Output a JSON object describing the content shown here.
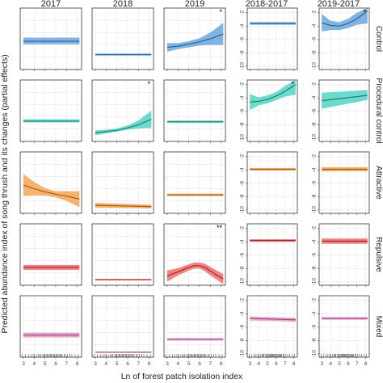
{
  "chart_data": {
    "type": "line",
    "xlabel": "Ln of forest patch isolation index",
    "ylabel": "Predicted abundance index of song thrush and its changes (partial effects)",
    "columns": [
      "2017",
      "2018",
      "2019",
      "2018-2017",
      "2019-2017"
    ],
    "rows": [
      "Control",
      "Procedural control",
      "Attractive",
      "Repulsive",
      "Mixed"
    ],
    "row_colors": [
      "#6aa7dd",
      "#52d5c4",
      "#f3a653",
      "#f06e6e",
      "#e59ac6"
    ],
    "line_colors": [
      "#2f5f8f",
      "#267c70",
      "#a25b13",
      "#a32424",
      "#9d4d7e"
    ],
    "xlim": [
      2.7,
      8.4
    ],
    "x_ticks": [
      3,
      4,
      5,
      6,
      7,
      8
    ],
    "x_ticks_bottom_labeled": true,
    "y_ticks_diff_columns": [
      -2,
      -4,
      -6,
      -8,
      -10
    ],
    "ylim_diff": [
      -10.5,
      -1.3
    ],
    "ylim_abs": [
      0,
      10
    ],
    "rug_x": [
      2.9,
      3.2,
      3.5,
      3.7,
      3.9,
      4.0,
      4.2,
      4.4,
      4.5,
      4.6,
      4.8,
      4.9,
      5.0,
      5.1,
      5.2,
      5.3,
      5.4,
      5.5,
      5.6,
      5.7,
      5.8,
      5.9,
      6.0,
      6.1,
      6.2,
      6.3,
      6.4,
      6.5,
      6.6,
      6.8,
      6.9,
      7.1,
      7.3,
      7.5,
      7.8,
      8.1
    ],
    "panels": [
      {
        "row": 0,
        "col": 0,
        "x": [
          3,
          8.2
        ],
        "y": [
          4.6,
          4.6
        ],
        "lower": [
          4.1,
          4.1
        ],
        "upper": [
          5.2,
          5.2
        ],
        "sig": ""
      },
      {
        "row": 0,
        "col": 1,
        "x": [
          3,
          8.2
        ],
        "y": [
          2.4,
          2.4
        ],
        "lower": [
          2.3,
          2.3
        ],
        "upper": [
          2.6,
          2.6
        ],
        "sig": ""
      },
      {
        "row": 0,
        "col": 2,
        "x": [
          3,
          4,
          5,
          6,
          7,
          8.2
        ],
        "y": [
          3.6,
          3.8,
          4.1,
          4.5,
          5.0,
          5.8
        ],
        "lower": [
          2.9,
          3.3,
          3.6,
          3.9,
          4.0,
          4.0
        ],
        "upper": [
          4.3,
          4.3,
          4.6,
          5.1,
          6.0,
          7.6
        ],
        "sig": "*"
      },
      {
        "row": 0,
        "col": 3,
        "x": [
          3,
          8.2
        ],
        "y": [
          -3.6,
          -3.6
        ],
        "lower": [
          -3.8,
          -3.8
        ],
        "upper": [
          -3.4,
          -3.4
        ],
        "sig": ""
      },
      {
        "row": 0,
        "col": 4,
        "x": [
          3,
          4,
          5,
          6,
          7,
          8.2
        ],
        "y": [
          -3.5,
          -3.9,
          -4.0,
          -3.6,
          -2.9,
          -1.7
        ],
        "lower": [
          -4.8,
          -4.6,
          -4.6,
          -4.3,
          -3.8,
          -3.6
        ],
        "upper": [
          -2.2,
          -3.2,
          -3.4,
          -2.9,
          -2.0,
          0.2
        ],
        "sig": "*"
      },
      {
        "row": 1,
        "col": 0,
        "x": [
          3,
          8.2
        ],
        "y": [
          3.3,
          3.3
        ],
        "lower": [
          3.1,
          3.1
        ],
        "upper": [
          3.6,
          3.6
        ],
        "sig": ""
      },
      {
        "row": 1,
        "col": 1,
        "x": [
          3,
          4,
          5,
          6,
          7,
          8.2
        ],
        "y": [
          1.4,
          1.6,
          1.8,
          2.2,
          2.7,
          3.6
        ],
        "lower": [
          1.0,
          1.3,
          1.6,
          1.9,
          2.1,
          2.2
        ],
        "upper": [
          1.8,
          1.9,
          2.1,
          2.6,
          3.4,
          5.0
        ],
        "sig": "*"
      },
      {
        "row": 1,
        "col": 2,
        "x": [
          3,
          8.2
        ],
        "y": [
          3.2,
          3.2
        ],
        "lower": [
          3.0,
          3.0
        ],
        "upper": [
          3.4,
          3.4
        ],
        "sig": ""
      },
      {
        "row": 1,
        "col": 3,
        "x": [
          3,
          4,
          5,
          6,
          7,
          8.2
        ],
        "y": [
          -4.6,
          -4.5,
          -4.2,
          -3.7,
          -3.0,
          -2.0
        ],
        "lower": [
          -5.8,
          -5.1,
          -4.8,
          -4.3,
          -3.8,
          -3.5
        ],
        "upper": [
          -3.4,
          -3.9,
          -3.6,
          -3.1,
          -2.2,
          -0.5
        ],
        "sig": "*"
      },
      {
        "row": 1,
        "col": 4,
        "x": [
          3,
          8.2
        ],
        "y": [
          -4.4,
          -3.6
        ],
        "lower": [
          -5.6,
          -4.3
        ],
        "upper": [
          -3.2,
          -2.8
        ],
        "sig": ""
      },
      {
        "row": 2,
        "col": 0,
        "x": [
          3,
          4,
          5,
          6,
          7,
          8.2
        ],
        "y": [
          4.6,
          4.0,
          3.5,
          3.1,
          2.8,
          2.3
        ],
        "lower": [
          2.8,
          2.9,
          2.9,
          2.6,
          2.0,
          1.0
        ],
        "upper": [
          6.4,
          5.1,
          4.1,
          3.6,
          3.6,
          3.6
        ],
        "sig": ""
      },
      {
        "row": 2,
        "col": 1,
        "x": [
          3,
          8.2
        ],
        "y": [
          1.3,
          1.1
        ],
        "lower": [
          0.9,
          0.8
        ],
        "upper": [
          1.7,
          1.4
        ],
        "sig": ""
      },
      {
        "row": 2,
        "col": 2,
        "x": [
          3,
          8.2
        ],
        "y": [
          3.0,
          3.0
        ],
        "lower": [
          2.8,
          2.8
        ],
        "upper": [
          3.2,
          3.2
        ],
        "sig": ""
      },
      {
        "row": 2,
        "col": 3,
        "x": [
          3,
          8.2
        ],
        "y": [
          -3.9,
          -3.9
        ],
        "lower": [
          -4.1,
          -4.1
        ],
        "upper": [
          -3.7,
          -3.7
        ],
        "sig": ""
      },
      {
        "row": 2,
        "col": 4,
        "x": [
          3,
          8.2
        ],
        "y": [
          -3.9,
          -3.9
        ],
        "lower": [
          -4.2,
          -4.2
        ],
        "upper": [
          -3.6,
          -3.6
        ],
        "sig": ""
      },
      {
        "row": 3,
        "col": 0,
        "x": [
          3,
          8.2
        ],
        "y": [
          2.9,
          2.9
        ],
        "lower": [
          2.5,
          2.5
        ],
        "upper": [
          3.3,
          3.3
        ],
        "sig": ""
      },
      {
        "row": 3,
        "col": 1,
        "x": [
          3,
          8.2
        ],
        "y": [
          0.9,
          0.9
        ],
        "lower": [
          0.8,
          0.8
        ],
        "upper": [
          1.0,
          1.0
        ],
        "sig": ""
      },
      {
        "row": 3,
        "col": 2,
        "x": [
          3,
          4,
          5,
          5.5,
          6,
          6.5,
          7,
          8.2
        ],
        "y": [
          1.5,
          2.2,
          2.9,
          3.2,
          3.2,
          2.9,
          2.3,
          1.0
        ],
        "lower": [
          0.6,
          1.6,
          2.4,
          2.7,
          2.7,
          2.3,
          1.6,
          0.2
        ],
        "upper": [
          2.4,
          2.8,
          3.4,
          3.7,
          3.7,
          3.5,
          3.0,
          1.8
        ],
        "sig": "**"
      },
      {
        "row": 3,
        "col": 3,
        "x": [
          3,
          8.2
        ],
        "y": [
          -3.8,
          -3.8
        ],
        "lower": [
          -4.0,
          -4.0
        ],
        "upper": [
          -3.6,
          -3.6
        ],
        "sig": ""
      },
      {
        "row": 3,
        "col": 4,
        "x": [
          3,
          8.2
        ],
        "y": [
          -3.9,
          -3.9
        ],
        "lower": [
          -4.3,
          -4.3
        ],
        "upper": [
          -3.5,
          -3.5
        ],
        "sig": ""
      },
      {
        "row": 4,
        "col": 0,
        "x": [
          3,
          8.2
        ],
        "y": [
          3.6,
          3.6
        ],
        "lower": [
          3.2,
          3.2
        ],
        "upper": [
          4.0,
          4.0
        ],
        "sig": ""
      },
      {
        "row": 4,
        "col": 1,
        "x": [
          3,
          8.2
        ],
        "y": [
          0.8,
          0.8
        ],
        "lower": [
          0.7,
          0.7
        ],
        "upper": [
          0.9,
          0.9
        ],
        "sig": ""
      },
      {
        "row": 4,
        "col": 2,
        "x": [
          3,
          8.2
        ],
        "y": [
          2.9,
          2.9
        ],
        "lower": [
          2.7,
          2.7
        ],
        "upper": [
          3.1,
          3.1
        ],
        "sig": ""
      },
      {
        "row": 4,
        "col": 3,
        "x": [
          3,
          8.2
        ],
        "y": [
          -4.7,
          -4.9
        ],
        "lower": [
          -5.0,
          -5.2
        ],
        "upper": [
          -4.4,
          -4.6
        ],
        "sig": ""
      },
      {
        "row": 4,
        "col": 4,
        "x": [
          3,
          8.2
        ],
        "y": [
          -4.7,
          -4.7
        ],
        "lower": [
          -4.9,
          -4.9
        ],
        "upper": [
          -4.5,
          -4.5
        ],
        "sig": ""
      }
    ]
  }
}
